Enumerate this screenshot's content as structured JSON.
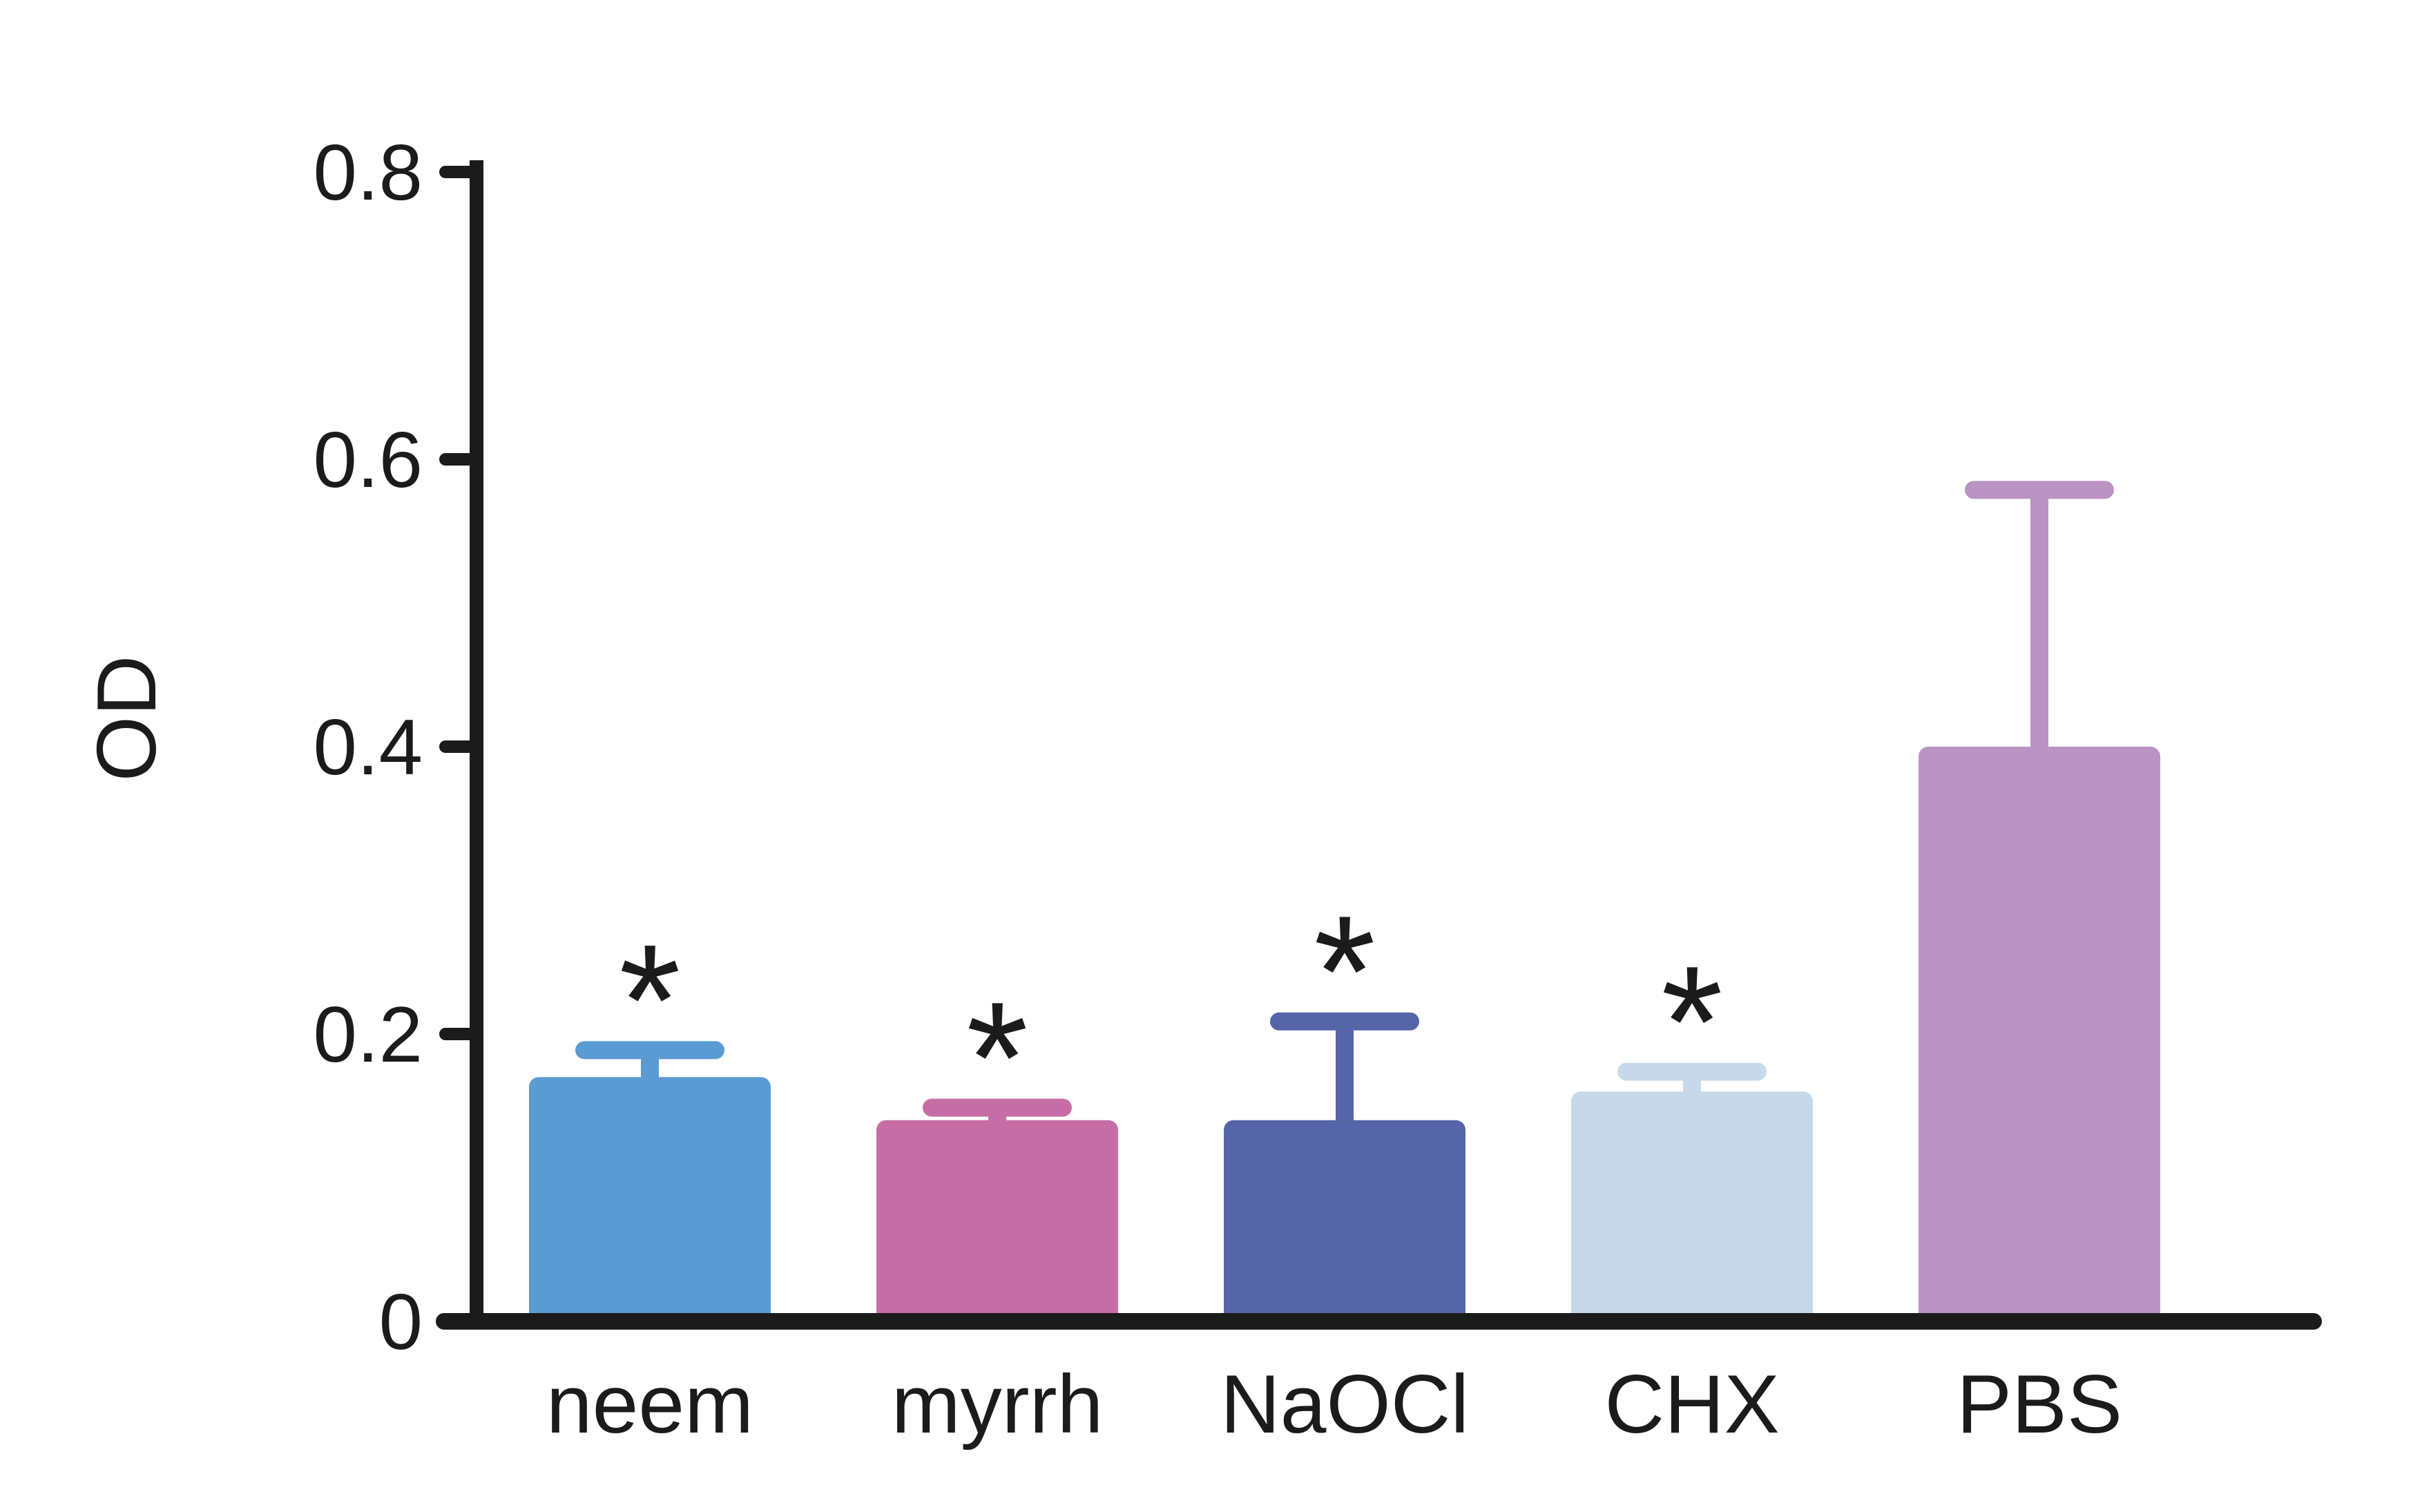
{
  "page": {
    "background": "#ffffff"
  },
  "chart_data": {
    "type": "bar",
    "title": "",
    "xlabel": "",
    "ylabel": "OD",
    "ylim": [
      0,
      0.8
    ],
    "ytick_values": [
      0,
      0.2,
      0.4,
      0.6,
      0.8
    ],
    "ytick_labels": [
      "0",
      "0.2",
      "0.4",
      "0.6",
      "0.8"
    ],
    "grid": "off",
    "legend": "none",
    "categories": [
      "neem",
      "myrrh",
      "NaOCl",
      "CHX",
      "PBS"
    ],
    "values": [
      0.17,
      0.14,
      0.14,
      0.16,
      0.4
    ],
    "error_bar_top": [
      0.195,
      0.155,
      0.215,
      0.18,
      0.585
    ],
    "error_sd": [
      0.025,
      0.015,
      0.075,
      0.02,
      0.185
    ],
    "significance": [
      "*",
      "*",
      "*",
      "*",
      ""
    ],
    "bar_colors": [
      "#5b9bd3",
      "#c76da6",
      "#5565a8",
      "#c7d9e8",
      "#ba93c5"
    ],
    "axis_color": "#1b1b1b",
    "text_color": "#1b1b1b",
    "background": "#ffffff"
  }
}
